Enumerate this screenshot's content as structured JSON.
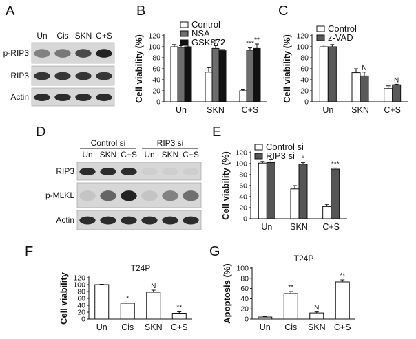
{
  "panels": {
    "A": {
      "letter": "A",
      "lanes": [
        "Un",
        "Cis",
        "SKN",
        "C+S"
      ],
      "rows": [
        "p-RIP3",
        "RIP3",
        "Actin"
      ],
      "band_intensity": {
        "p-RIP3": [
          0.45,
          0.5,
          0.75,
          0.95
        ],
        "RIP3": [
          0.85,
          0.85,
          0.85,
          0.85
        ],
        "Actin": [
          0.9,
          0.9,
          0.9,
          0.9
        ]
      }
    },
    "D": {
      "letter": "D",
      "groups": [
        "Control si",
        "RIP3 si"
      ],
      "lanes": [
        "Un",
        "SKN",
        "C+S",
        "Un",
        "SKN",
        "C+S"
      ],
      "rows": [
        "RIP3",
        "p-MLKL",
        "Actin"
      ],
      "band_intensity": {
        "RIP3": [
          0.9,
          0.9,
          0.9,
          0.05,
          0.05,
          0.05
        ],
        "p-MLKL": [
          0.1,
          0.6,
          0.95,
          0.1,
          0.45,
          0.55
        ],
        "Actin": [
          0.9,
          0.9,
          0.9,
          0.9,
          0.9,
          0.9
        ]
      }
    },
    "B_letter": "B",
    "C_letter": "C",
    "E_letter": "E",
    "F_letter": "F",
    "G_letter": "G"
  },
  "chart_data": [
    {
      "id": "B",
      "type": "bar",
      "title": "",
      "xlabel": "",
      "ylabel": "Cell viability (%)",
      "ylim": [
        0,
        120
      ],
      "yticks": [
        0,
        20,
        40,
        60,
        80,
        100,
        120
      ],
      "categories": [
        "Un",
        "SKN",
        "C+S"
      ],
      "legend_position": "top-right",
      "series": [
        {
          "name": "Control",
          "color": "#ffffff",
          "values": [
            100,
            54,
            20
          ],
          "errors": [
            4,
            8,
            2
          ]
        },
        {
          "name": "NSA",
          "color": "#6d6d6d",
          "values": [
            99,
            97,
            94
          ],
          "errors": [
            3,
            5,
            4
          ]
        },
        {
          "name": "GSK872",
          "color": "#111111",
          "values": [
            100,
            93,
            97
          ],
          "errors": [
            3,
            2,
            8
          ]
        }
      ],
      "annotations": [
        {
          "category": 1,
          "series": 1,
          "text": "†"
        },
        {
          "category": 1,
          "series": 2,
          "text": "*"
        },
        {
          "category": 2,
          "series": 1,
          "text": "***"
        },
        {
          "category": 2,
          "series": 2,
          "text": "**"
        }
      ]
    },
    {
      "id": "C",
      "type": "bar",
      "title": "",
      "xlabel": "",
      "ylabel": "Cell viability (%)",
      "ylim": [
        0,
        120
      ],
      "yticks": [
        0,
        20,
        40,
        60,
        80,
        100,
        120
      ],
      "categories": [
        "Un",
        "SKN",
        "C+S"
      ],
      "legend_position": "top-left",
      "series": [
        {
          "name": "Control",
          "color": "#ffffff",
          "values": [
            100,
            53,
            24
          ],
          "errors": [
            3,
            7,
            5
          ]
        },
        {
          "name": "z-VAD",
          "color": "#5a5a5a",
          "values": [
            100,
            47,
            31
          ],
          "errors": [
            4,
            7,
            1
          ]
        }
      ],
      "annotations": [
        {
          "category": 1,
          "series": 1,
          "text": "N"
        },
        {
          "category": 2,
          "series": 1,
          "text": "N"
        }
      ]
    },
    {
      "id": "E",
      "type": "bar",
      "title": "",
      "xlabel": "",
      "ylabel": "Cell viability (%)",
      "ylim": [
        0,
        120
      ],
      "yticks": [
        0,
        20,
        40,
        60,
        80,
        100,
        120
      ],
      "categories": [
        "Un",
        "SKN",
        "C+S"
      ],
      "legend_position": "top-left",
      "series": [
        {
          "name": "Control si",
          "color": "#ffffff",
          "values": [
            101,
            54,
            22
          ],
          "errors": [
            3,
            6,
            4
          ]
        },
        {
          "name": "RIP3 si",
          "color": "#555555",
          "values": [
            102,
            99,
            90
          ],
          "errors": [
            6,
            3,
            2
          ]
        }
      ],
      "annotations": [
        {
          "category": 1,
          "series": 1,
          "text": "*"
        },
        {
          "category": 2,
          "series": 1,
          "text": "***"
        }
      ]
    },
    {
      "id": "F",
      "type": "bar",
      "title": "T24P",
      "xlabel": "",
      "ylabel": "Cell viability",
      "ylim": [
        0,
        120
      ],
      "yticks": [
        0,
        20,
        40,
        60,
        80,
        100,
        120
      ],
      "categories": [
        "Un",
        "Cis",
        "SKN",
        "C+S"
      ],
      "series": [
        {
          "color": "#ffffff",
          "values": [
            100,
            46,
            78,
            17
          ],
          "errors": [
            1,
            1,
            6,
            4
          ]
        }
      ],
      "annotations": [
        {
          "category": 1,
          "series": 0,
          "text": "*"
        },
        {
          "category": 2,
          "series": 0,
          "text": "N"
        },
        {
          "category": 3,
          "series": 0,
          "text": "**"
        }
      ]
    },
    {
      "id": "G",
      "type": "bar",
      "title": "T24P",
      "xlabel": "",
      "ylabel": "Apoptosis (%)",
      "ylim": [
        0,
        100
      ],
      "yticks": [
        0,
        20,
        40,
        60,
        80,
        100
      ],
      "categories": [
        "Un",
        "Cis",
        "SKN",
        "C+S"
      ],
      "series": [
        {
          "color": "#ffffff",
          "values": [
            4,
            50,
            12,
            73
          ],
          "errors": [
            1,
            4,
            2,
            4
          ]
        }
      ],
      "annotations": [
        {
          "category": 1,
          "series": 0,
          "text": "**"
        },
        {
          "category": 2,
          "series": 0,
          "text": "N"
        },
        {
          "category": 3,
          "series": 0,
          "text": "**"
        }
      ]
    }
  ]
}
